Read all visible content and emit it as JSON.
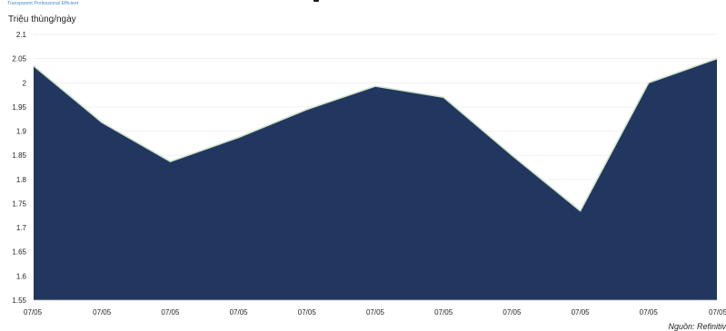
{
  "brand_tagline": "Transparent Professional Efficient",
  "source_note": "Nguồn: Refinitiv",
  "colors": {
    "fill": "#22375f",
    "line": "#cfe3c9",
    "grid": "#ececec"
  },
  "chart_data": {
    "type": "area",
    "ylabel": "Triệu thùng/ngày",
    "xlabel": "",
    "ylim": [
      1.55,
      2.1
    ],
    "y_ticks": [
      "1.55",
      "1.6",
      "1.65",
      "1.7",
      "1.75",
      "1.8",
      "1.85",
      "1.9",
      "1.95",
      "2",
      "2.05",
      "2.1"
    ],
    "categories": [
      "07/05",
      "07/05",
      "07/05",
      "07/05",
      "07/05",
      "07/05",
      "07/05",
      "07/05",
      "07/05",
      "07/05",
      "07/05"
    ],
    "values": [
      2.035,
      1.918,
      1.837,
      1.887,
      1.945,
      1.993,
      1.97,
      1.85,
      1.735,
      2.0,
      2.05
    ],
    "grid": true,
    "legend": "none"
  }
}
